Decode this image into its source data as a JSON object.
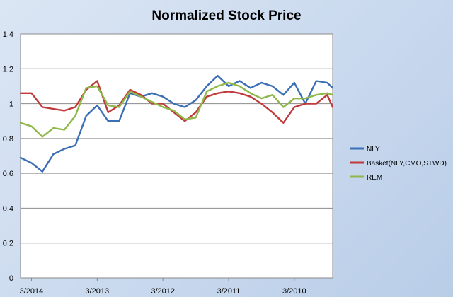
{
  "chart_data": {
    "type": "line",
    "title": "Normalized Stock Price",
    "xlabel": "",
    "ylabel": "",
    "ylim": [
      0,
      1.4
    ],
    "yticks": [
      0,
      0.2,
      0.4,
      0.6,
      0.8,
      1,
      1.2,
      1.4
    ],
    "ytick_labels": [
      "0",
      "0.2",
      "0.4",
      "0.6",
      "0.8",
      "1",
      "1.2",
      "1.4"
    ],
    "x_order": "descending",
    "xticks": [
      {
        "label": "3/2014",
        "value": "2014-03"
      },
      {
        "label": "3/2013",
        "value": "2013-03"
      },
      {
        "label": "3/2012",
        "value": "2012-03"
      },
      {
        "label": "3/2011",
        "value": "2011-03"
      },
      {
        "label": "3/2010",
        "value": "2010-03"
      }
    ],
    "x": [
      "2014-05",
      "2014-03",
      "2014-01",
      "2013-11",
      "2013-09",
      "2013-07",
      "2013-05",
      "2013-03",
      "2013-01",
      "2012-11",
      "2012-09",
      "2012-07",
      "2012-05",
      "2012-03",
      "2012-01",
      "2011-11",
      "2011-09",
      "2011-07",
      "2011-05",
      "2011-03",
      "2011-01",
      "2010-11",
      "2010-09",
      "2010-07",
      "2010-05",
      "2010-03",
      "2010-01",
      "2009-11",
      "2009-09",
      "2009-08"
    ],
    "grid": true,
    "legend_position": "right",
    "series": [
      {
        "name": "NLY",
        "color": "#3b6fb6",
        "values": [
          0.69,
          0.66,
          0.61,
          0.71,
          0.74,
          0.76,
          0.93,
          0.99,
          0.9,
          0.9,
          1.06,
          1.04,
          1.06,
          1.04,
          1.0,
          0.98,
          1.02,
          1.1,
          1.16,
          1.1,
          1.13,
          1.09,
          1.12,
          1.1,
          1.05,
          1.12,
          1.0,
          1.13,
          1.12,
          1.09
        ]
      },
      {
        "name": "Basket(NLY,CMO,STWD)",
        "color": "#c0393b",
        "values": [
          1.06,
          1.06,
          0.98,
          0.97,
          0.96,
          0.98,
          1.08,
          1.13,
          0.95,
          0.99,
          1.08,
          1.05,
          1.0,
          1.0,
          0.95,
          0.9,
          0.95,
          1.04,
          1.06,
          1.07,
          1.06,
          1.04,
          1.0,
          0.95,
          0.89,
          0.98,
          1.0,
          1.0,
          1.05,
          0.98
        ]
      },
      {
        "name": "REM",
        "color": "#8fb84a",
        "values": [
          0.89,
          0.87,
          0.81,
          0.86,
          0.85,
          0.93,
          1.09,
          1.1,
          0.99,
          0.98,
          1.07,
          1.04,
          1.01,
          0.98,
          0.96,
          0.91,
          0.92,
          1.07,
          1.1,
          1.12,
          1.1,
          1.06,
          1.03,
          1.05,
          0.98,
          1.03,
          1.03,
          1.05,
          1.06,
          1.05
        ]
      }
    ]
  }
}
